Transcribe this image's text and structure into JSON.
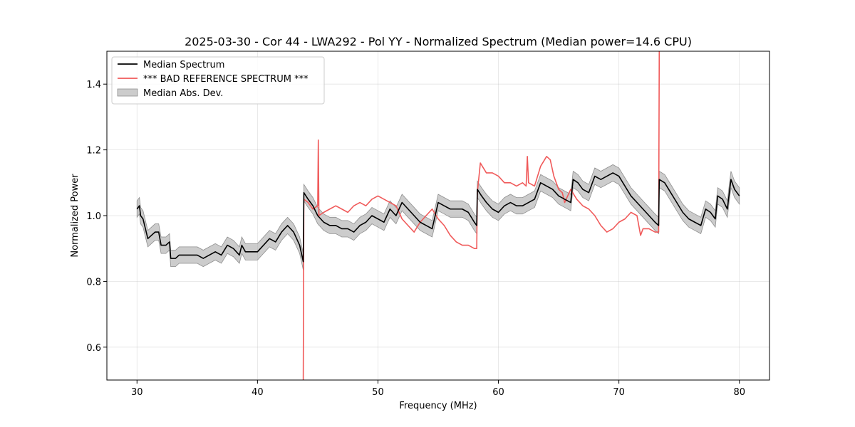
{
  "chart_data": {
    "type": "line",
    "title": "2025-03-30 - Cor 44 - LWA292 - Pol YY - Normalized Spectrum (Median power=14.6 CPU)",
    "xlabel": "Frequency (MHz)",
    "ylabel": "Normalized Power",
    "xlim": [
      27.5,
      82.5
    ],
    "ylim": [
      0.5,
      1.5
    ],
    "xticks": [
      30,
      40,
      50,
      60,
      70,
      80
    ],
    "yticks": [
      0.6,
      0.8,
      1.0,
      1.2,
      1.4
    ],
    "grid": true,
    "legend_position": "upper-left",
    "series": [
      {
        "name": "Median Spectrum",
        "color": "#000000",
        "points": [
          [
            30.0,
            1.02
          ],
          [
            30.2,
            1.03
          ],
          [
            30.3,
            1.0
          ],
          [
            30.5,
            0.99
          ],
          [
            30.7,
            0.96
          ],
          [
            30.9,
            0.93
          ],
          [
            31.2,
            0.94
          ],
          [
            31.5,
            0.95
          ],
          [
            31.8,
            0.95
          ],
          [
            32.0,
            0.91
          ],
          [
            32.4,
            0.91
          ],
          [
            32.7,
            0.92
          ],
          [
            32.8,
            0.87
          ],
          [
            33.2,
            0.87
          ],
          [
            33.5,
            0.88
          ],
          [
            34.0,
            0.88
          ],
          [
            34.5,
            0.88
          ],
          [
            35.0,
            0.88
          ],
          [
            35.5,
            0.87
          ],
          [
            36.0,
            0.88
          ],
          [
            36.5,
            0.89
          ],
          [
            37.0,
            0.88
          ],
          [
            37.5,
            0.91
          ],
          [
            38.0,
            0.9
          ],
          [
            38.5,
            0.88
          ],
          [
            38.7,
            0.91
          ],
          [
            39.0,
            0.89
          ],
          [
            39.5,
            0.89
          ],
          [
            40.0,
            0.89
          ],
          [
            40.5,
            0.91
          ],
          [
            41.0,
            0.93
          ],
          [
            41.5,
            0.92
          ],
          [
            42.0,
            0.95
          ],
          [
            42.5,
            0.97
          ],
          [
            43.0,
            0.95
          ],
          [
            43.5,
            0.91
          ],
          [
            43.8,
            0.86
          ],
          [
            43.85,
            1.07
          ],
          [
            44.2,
            1.05
          ],
          [
            44.6,
            1.03
          ],
          [
            45.0,
            1.0
          ],
          [
            45.5,
            0.98
          ],
          [
            46.0,
            0.97
          ],
          [
            46.5,
            0.97
          ],
          [
            47.0,
            0.96
          ],
          [
            47.5,
            0.96
          ],
          [
            48.0,
            0.95
          ],
          [
            48.5,
            0.97
          ],
          [
            49.0,
            0.98
          ],
          [
            49.5,
            1.0
          ],
          [
            50.0,
            0.99
          ],
          [
            50.5,
            0.98
          ],
          [
            51.0,
            1.02
          ],
          [
            51.5,
            1.0
          ],
          [
            52.0,
            1.04
          ],
          [
            52.5,
            1.02
          ],
          [
            53.0,
            1.0
          ],
          [
            53.5,
            0.98
          ],
          [
            54.0,
            0.97
          ],
          [
            54.5,
            0.96
          ],
          [
            55.0,
            1.04
          ],
          [
            55.5,
            1.03
          ],
          [
            56.0,
            1.02
          ],
          [
            56.5,
            1.02
          ],
          [
            57.0,
            1.02
          ],
          [
            57.5,
            1.01
          ],
          [
            58.0,
            0.98
          ],
          [
            58.2,
            0.97
          ],
          [
            58.25,
            1.08
          ],
          [
            58.6,
            1.06
          ],
          [
            59.0,
            1.04
          ],
          [
            59.5,
            1.02
          ],
          [
            60.0,
            1.01
          ],
          [
            60.5,
            1.03
          ],
          [
            61.0,
            1.04
          ],
          [
            61.5,
            1.03
          ],
          [
            62.0,
            1.03
          ],
          [
            62.5,
            1.04
          ],
          [
            63.0,
            1.05
          ],
          [
            63.5,
            1.1
          ],
          [
            64.0,
            1.09
          ],
          [
            64.5,
            1.08
          ],
          [
            65.0,
            1.06
          ],
          [
            65.5,
            1.05
          ],
          [
            66.0,
            1.04
          ],
          [
            66.2,
            1.11
          ],
          [
            66.6,
            1.1
          ],
          [
            67.0,
            1.08
          ],
          [
            67.5,
            1.07
          ],
          [
            68.0,
            1.12
          ],
          [
            68.5,
            1.11
          ],
          [
            69.0,
            1.12
          ],
          [
            69.5,
            1.13
          ],
          [
            70.0,
            1.12
          ],
          [
            70.5,
            1.09
          ],
          [
            71.0,
            1.06
          ],
          [
            71.5,
            1.04
          ],
          [
            72.0,
            1.02
          ],
          [
            72.5,
            1.0
          ],
          [
            73.0,
            0.98
          ],
          [
            73.3,
            0.97
          ],
          [
            73.35,
            1.11
          ],
          [
            73.8,
            1.1
          ],
          [
            74.3,
            1.07
          ],
          [
            74.8,
            1.04
          ],
          [
            75.3,
            1.01
          ],
          [
            75.8,
            0.99
          ],
          [
            76.3,
            0.98
          ],
          [
            76.8,
            0.97
          ],
          [
            77.2,
            1.02
          ],
          [
            77.6,
            1.01
          ],
          [
            78.0,
            0.99
          ],
          [
            78.2,
            1.06
          ],
          [
            78.6,
            1.05
          ],
          [
            79.0,
            1.02
          ],
          [
            79.3,
            1.11
          ],
          [
            79.6,
            1.08
          ],
          [
            80.0,
            1.06
          ]
        ]
      },
      {
        "name": "*** BAD REFERENCE SPECTRUM ***",
        "color": "#f05a5a",
        "points": [
          [
            43.8,
            0.5
          ],
          [
            43.85,
            1.05
          ],
          [
            44.2,
            1.04
          ],
          [
            44.6,
            1.02
          ],
          [
            45.0,
            1.03
          ],
          [
            45.05,
            1.23
          ],
          [
            45.1,
            1.0
          ],
          [
            45.5,
            1.01
          ],
          [
            46.0,
            1.02
          ],
          [
            46.5,
            1.03
          ],
          [
            47.0,
            1.02
          ],
          [
            47.5,
            1.01
          ],
          [
            48.0,
            1.03
          ],
          [
            48.5,
            1.04
          ],
          [
            49.0,
            1.03
          ],
          [
            49.5,
            1.05
          ],
          [
            50.0,
            1.06
          ],
          [
            50.5,
            1.05
          ],
          [
            51.0,
            1.04
          ],
          [
            51.5,
            1.03
          ],
          [
            52.0,
            0.99
          ],
          [
            52.5,
            0.97
          ],
          [
            53.0,
            0.95
          ],
          [
            53.5,
            0.98
          ],
          [
            54.0,
            1.0
          ],
          [
            54.5,
            1.02
          ],
          [
            55.0,
            0.99
          ],
          [
            55.5,
            0.97
          ],
          [
            56.0,
            0.94
          ],
          [
            56.5,
            0.92
          ],
          [
            57.0,
            0.91
          ],
          [
            57.5,
            0.91
          ],
          [
            58.0,
            0.9
          ],
          [
            58.2,
            0.9
          ],
          [
            58.25,
            1.07
          ],
          [
            58.5,
            1.16
          ],
          [
            59.0,
            1.13
          ],
          [
            59.5,
            1.13
          ],
          [
            60.0,
            1.12
          ],
          [
            60.5,
            1.1
          ],
          [
            61.0,
            1.1
          ],
          [
            61.5,
            1.09
          ],
          [
            62.0,
            1.1
          ],
          [
            62.3,
            1.09
          ],
          [
            62.4,
            1.18
          ],
          [
            62.5,
            1.1
          ],
          [
            63.0,
            1.09
          ],
          [
            63.5,
            1.15
          ],
          [
            64.0,
            1.18
          ],
          [
            64.3,
            1.17
          ],
          [
            64.6,
            1.12
          ],
          [
            65.0,
            1.08
          ],
          [
            65.3,
            1.07
          ],
          [
            65.5,
            1.04
          ],
          [
            66.0,
            1.08
          ],
          [
            66.5,
            1.05
          ],
          [
            67.0,
            1.03
          ],
          [
            67.5,
            1.02
          ],
          [
            68.0,
            1.0
          ],
          [
            68.5,
            0.97
          ],
          [
            69.0,
            0.95
          ],
          [
            69.5,
            0.96
          ],
          [
            70.0,
            0.98
          ],
          [
            70.5,
            0.99
          ],
          [
            71.0,
            1.01
          ],
          [
            71.5,
            1.0
          ],
          [
            71.8,
            0.94
          ],
          [
            72.0,
            0.96
          ],
          [
            72.5,
            0.96
          ],
          [
            73.0,
            0.95
          ],
          [
            73.3,
            0.95
          ],
          [
            73.35,
            1.5
          ]
        ]
      },
      {
        "name": "Median Abs. Dev.",
        "color": "#b0b0b0",
        "type": "band",
        "deviation": 0.025
      }
    ]
  }
}
